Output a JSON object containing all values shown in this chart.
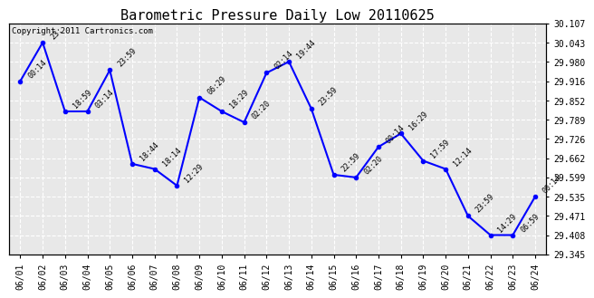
{
  "title": "Barometric Pressure Daily Low 20110625",
  "copyright": "Copyright 2011 Cartronics.com",
  "x_labels": [
    "06/01",
    "06/02",
    "06/03",
    "06/04",
    "06/05",
    "06/06",
    "06/07",
    "06/08",
    "06/09",
    "06/10",
    "06/11",
    "06/12",
    "06/13",
    "06/14",
    "06/15",
    "06/16",
    "06/17",
    "06/18",
    "06/19",
    "06/20",
    "06/21",
    "06/22",
    "06/23",
    "06/24"
  ],
  "y_values": [
    29.916,
    30.043,
    29.816,
    29.816,
    29.952,
    29.643,
    29.626,
    29.571,
    29.862,
    29.816,
    29.78,
    29.943,
    29.98,
    29.825,
    29.607,
    29.598,
    29.699,
    29.743,
    29.653,
    29.626,
    29.471,
    29.408,
    29.408,
    29.535
  ],
  "point_labels": [
    "00:14",
    "23:",
    "18:59",
    "03:14",
    "23:59",
    "18:44",
    "18:14",
    "12:29",
    "06:29",
    "18:29",
    "02:20",
    "02:14",
    "19:44",
    "23:59",
    "22:59",
    "02:20",
    "00:14",
    "16:29",
    "17:59",
    "12:14",
    "23:59",
    "14:29",
    "06:59",
    "00:14"
  ],
  "ylim_min": 29.345,
  "ylim_max": 30.107,
  "yticks": [
    29.345,
    29.408,
    29.471,
    29.535,
    29.599,
    29.662,
    29.726,
    29.789,
    29.852,
    29.916,
    29.98,
    30.043,
    30.107
  ],
  "line_color": "blue",
  "marker": "o",
  "marker_size": 3,
  "bg_color": "white",
  "plot_bg_color": "#e8e8e8",
  "grid_color": "#ffffff",
  "title_fontsize": 11,
  "label_fontsize": 7,
  "point_label_fontsize": 6,
  "copyright_fontsize": 6.5
}
